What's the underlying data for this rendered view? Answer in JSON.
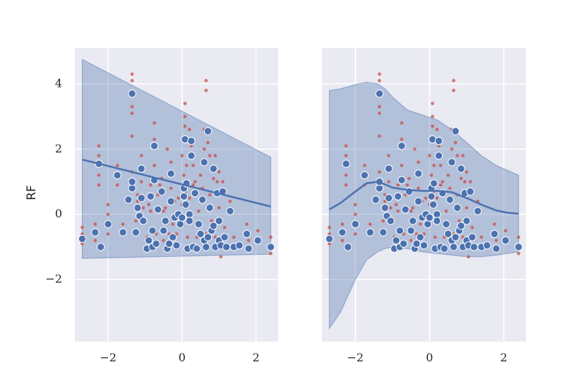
{
  "chart_data": [
    {
      "type": "scatter",
      "fit": "linear",
      "xlabel": "",
      "ylabel": "RF",
      "xlim": [
        -2.9,
        2.6
      ],
      "ylim": [
        -3.9,
        5.1
      ],
      "xticks": [
        -2,
        0,
        2
      ],
      "xtick_labels": [
        "−2",
        "0",
        "2"
      ],
      "yticks": [
        -2,
        0,
        2,
        4
      ],
      "ytick_labels": [
        "−2",
        "0",
        "2",
        "4"
      ],
      "grid": true,
      "colors": {
        "background": "#EAEAF2",
        "main": "#4C72B0",
        "minor": "#DD8452",
        "minor_fill": "#C44E52"
      },
      "fit_line": {
        "x": [
          -2.7,
          2.4
        ],
        "y": [
          1.68,
          0.24
        ]
      },
      "band": {
        "x": [
          -2.7,
          2.4
        ],
        "upper": [
          4.75,
          1.75
        ],
        "lower": [
          -1.35,
          -1.22
        ]
      }
    },
    {
      "type": "scatter",
      "fit": "lowess",
      "xlabel": "",
      "ylabel": "",
      "xlim": [
        -2.9,
        2.6
      ],
      "ylim": [
        -3.9,
        5.1
      ],
      "xticks": [
        -2,
        0,
        2
      ],
      "xtick_labels": [
        "−2",
        "0",
        "2"
      ],
      "yticks": [
        -2,
        0,
        2,
        4
      ],
      "grid": true,
      "fit_line": {
        "x": [
          -2.7,
          -2.4,
          -2.0,
          -1.7,
          -1.4,
          -1.2,
          -1.0,
          -0.6,
          -0.2,
          0.2,
          0.6,
          1.0,
          1.4,
          1.8,
          2.1,
          2.4
        ],
        "y": [
          0.15,
          0.35,
          0.7,
          0.95,
          1.0,
          0.92,
          0.82,
          0.75,
          0.72,
          0.72,
          0.68,
          0.5,
          0.3,
          0.12,
          0.05,
          0.02
        ]
      },
      "band": {
        "x": [
          -2.7,
          -2.4,
          -2.0,
          -1.7,
          -1.4,
          -1.2,
          -1.0,
          -0.6,
          -0.2,
          0.2,
          0.6,
          1.0,
          1.4,
          1.8,
          2.1,
          2.4
        ],
        "upper": [
          3.8,
          3.85,
          3.98,
          4.05,
          4.0,
          3.85,
          3.6,
          3.2,
          3.05,
          2.9,
          2.6,
          2.2,
          1.8,
          1.5,
          1.35,
          1.2
        ],
        "lower": [
          -3.5,
          -3.0,
          -2.0,
          -1.4,
          -1.15,
          -1.05,
          -1.0,
          -1.05,
          -1.15,
          -1.2,
          -1.25,
          -1.3,
          -1.3,
          -1.25,
          -1.2,
          -1.15
        ]
      }
    }
  ],
  "points": {
    "main": [
      [
        -2.7,
        -0.75
      ],
      [
        -2.35,
        -0.55
      ],
      [
        -2.2,
        -1.0
      ],
      [
        -2.25,
        1.55
      ],
      [
        -2.0,
        -0.3
      ],
      [
        -1.75,
        1.2
      ],
      [
        -1.6,
        -0.55
      ],
      [
        -1.45,
        0.45
      ],
      [
        -1.35,
        3.7
      ],
      [
        -1.35,
        0.8
      ],
      [
        -1.35,
        1.0
      ],
      [
        -1.25,
        -0.55
      ],
      [
        -1.2,
        0.2
      ],
      [
        -1.15,
        -0.05
      ],
      [
        -1.1,
        1.4
      ],
      [
        -1.1,
        0.5
      ],
      [
        -1.05,
        -0.2
      ],
      [
        -0.95,
        -1.05
      ],
      [
        -0.9,
        -0.8
      ],
      [
        -0.85,
        0.55
      ],
      [
        -0.8,
        -1.0
      ],
      [
        -0.8,
        -0.5
      ],
      [
        -0.75,
        2.1
      ],
      [
        -0.75,
        1.05
      ],
      [
        -0.7,
        -0.9
      ],
      [
        -0.65,
        0.15
      ],
      [
        -0.55,
        0.7
      ],
      [
        -0.5,
        -0.5
      ],
      [
        -0.45,
        -0.2
      ],
      [
        -0.4,
        -1.05
      ],
      [
        -0.35,
        -0.9
      ],
      [
        -0.3,
        1.25
      ],
      [
        -0.3,
        0.4
      ],
      [
        -0.25,
        -0.7
      ],
      [
        -0.2,
        -0.1
      ],
      [
        -0.15,
        -0.95
      ],
      [
        -0.1,
        0.0
      ],
      [
        -0.05,
        -0.3
      ],
      [
        0.0,
        -0.1
      ],
      [
        0.05,
        0.8
      ],
      [
        0.05,
        0.55
      ],
      [
        0.08,
        2.3
      ],
      [
        0.1,
        0.3
      ],
      [
        0.12,
        0.95
      ],
      [
        0.15,
        -1.05
      ],
      [
        0.2,
        0.0
      ],
      [
        0.2,
        -0.2
      ],
      [
        0.25,
        1.8
      ],
      [
        0.25,
        2.25
      ],
      [
        0.3,
        -1.0
      ],
      [
        0.35,
        0.65
      ],
      [
        0.4,
        -1.05
      ],
      [
        0.45,
        -0.3
      ],
      [
        0.5,
        -0.6
      ],
      [
        0.55,
        0.45
      ],
      [
        0.6,
        1.6
      ],
      [
        0.6,
        -0.8
      ],
      [
        0.65,
        -1.0
      ],
      [
        0.7,
        2.55
      ],
      [
        0.7,
        -0.7
      ],
      [
        0.75,
        0.2
      ],
      [
        0.8,
        -0.5
      ],
      [
        0.85,
        1.4
      ],
      [
        0.85,
        -0.35
      ],
      [
        0.9,
        -1.0
      ],
      [
        0.95,
        0.65
      ],
      [
        1.0,
        -0.2
      ],
      [
        1.0,
        -0.8
      ],
      [
        1.05,
        -0.95
      ],
      [
        1.1,
        0.7
      ],
      [
        1.15,
        -0.7
      ],
      [
        1.2,
        -1.0
      ],
      [
        1.3,
        0.1
      ],
      [
        1.4,
        -1.0
      ],
      [
        1.55,
        -0.95
      ],
      [
        1.75,
        -0.6
      ],
      [
        1.8,
        -1.05
      ],
      [
        2.05,
        -0.8
      ],
      [
        2.4,
        -1.0
      ]
    ],
    "minor": [
      [
        -2.7,
        -0.4
      ],
      [
        -2.7,
        -0.9
      ],
      [
        -2.35,
        -0.3
      ],
      [
        -2.35,
        -0.8
      ],
      [
        -2.25,
        2.1
      ],
      [
        -2.25,
        1.8
      ],
      [
        -2.25,
        1.2
      ],
      [
        -2.25,
        0.9
      ],
      [
        -2.0,
        0.3
      ],
      [
        -2.0,
        -0.6
      ],
      [
        -1.75,
        1.5
      ],
      [
        -1.75,
        0.9
      ],
      [
        -1.6,
        -0.3
      ],
      [
        -1.35,
        4.3
      ],
      [
        -1.35,
        4.1
      ],
      [
        -1.35,
        3.3
      ],
      [
        -1.35,
        3.1
      ],
      [
        -1.35,
        2.4
      ],
      [
        -1.35,
        1.3
      ],
      [
        -1.25,
        -0.2
      ],
      [
        -1.2,
        0.6
      ],
      [
        -1.1,
        1.8
      ],
      [
        -1.1,
        1.0
      ],
      [
        -1.05,
        0.2
      ],
      [
        -0.95,
        -0.7
      ],
      [
        -0.85,
        0.9
      ],
      [
        -0.85,
        0.1
      ],
      [
        -0.75,
        2.8
      ],
      [
        -0.75,
        2.3
      ],
      [
        -0.75,
        1.5
      ],
      [
        -0.7,
        -0.6
      ],
      [
        -0.65,
        0.6
      ],
      [
        -0.55,
        1.1
      ],
      [
        -0.5,
        -0.8
      ],
      [
        -0.45,
        0.2
      ],
      [
        -0.4,
        2.0
      ],
      [
        -0.35,
        -0.6
      ],
      [
        -0.3,
        1.6
      ],
      [
        -0.3,
        0.8
      ],
      [
        -0.25,
        -0.3
      ],
      [
        -0.2,
        0.4
      ],
      [
        -0.15,
        -0.6
      ],
      [
        -0.1,
        0.5
      ],
      [
        0.0,
        0.3
      ],
      [
        0.05,
        1.2
      ],
      [
        0.08,
        3.4
      ],
      [
        0.08,
        3.0
      ],
      [
        0.08,
        2.7
      ],
      [
        0.1,
        0.7
      ],
      [
        0.12,
        1.5
      ],
      [
        0.15,
        -0.7
      ],
      [
        0.2,
        0.5
      ],
      [
        0.25,
        2.1
      ],
      [
        0.3,
        1.5
      ],
      [
        0.35,
        1.0
      ],
      [
        0.4,
        -0.7
      ],
      [
        0.45,
        0.1
      ],
      [
        0.5,
        -0.3
      ],
      [
        0.55,
        0.8
      ],
      [
        0.6,
        2.0
      ],
      [
        0.65,
        4.1
      ],
      [
        0.65,
        3.8
      ],
      [
        0.65,
        -0.6
      ],
      [
        0.7,
        2.2
      ],
      [
        0.75,
        0.6
      ],
      [
        0.8,
        -0.2
      ],
      [
        0.85,
        1.1
      ],
      [
        0.9,
        -0.7
      ],
      [
        0.95,
        1.0
      ],
      [
        1.0,
        0.2
      ],
      [
        1.05,
        -1.3
      ],
      [
        1.1,
        1.0
      ],
      [
        1.15,
        -0.4
      ],
      [
        1.3,
        0.4
      ],
      [
        1.4,
        -0.7
      ],
      [
        1.75,
        -0.3
      ],
      [
        1.8,
        -0.8
      ],
      [
        2.05,
        -0.5
      ],
      [
        2.4,
        -1.2
      ],
      [
        2.4,
        -0.7
      ],
      [
        -2.7,
        -0.6
      ],
      [
        -2.0,
        0.0
      ],
      [
        -1.2,
        0.4
      ],
      [
        -0.9,
        0.3
      ],
      [
        -0.6,
        0.9
      ],
      [
        0.0,
        1.8
      ],
      [
        0.3,
        0.9
      ],
      [
        0.5,
        1.2
      ],
      [
        0.75,
        1.8
      ],
      [
        1.0,
        1.3
      ],
      [
        -0.5,
        0.1
      ],
      [
        0.2,
        2.6
      ],
      [
        0.6,
        2.6
      ],
      [
        0.9,
        1.8
      ]
    ]
  }
}
